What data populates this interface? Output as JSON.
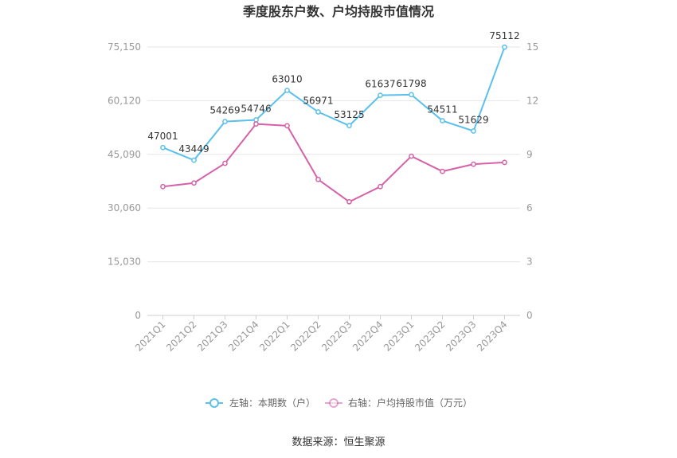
{
  "chart_data": {
    "type": "line",
    "title": "季度股东户数、户均持股市值情况",
    "categories": [
      "2021Q1",
      "2021Q2",
      "2021Q3",
      "2021Q4",
      "2022Q1",
      "2022Q2",
      "2022Q3",
      "2022Q4",
      "2023Q1",
      "2023Q2",
      "2023Q3",
      "2023Q4"
    ],
    "left_axis": {
      "ticks": [
        "0",
        "15,030",
        "30,060",
        "45,090",
        "60,120",
        "75,150"
      ],
      "ylim": [
        0,
        75150
      ]
    },
    "right_axis": {
      "ticks": [
        "0",
        "3",
        "6",
        "9",
        "12",
        "15"
      ],
      "ylim": [
        0,
        15
      ]
    },
    "series": [
      {
        "name": "左轴：本期数（户）",
        "axis": "left",
        "color": "#5bc0eb",
        "values": [
          47001,
          43449,
          54269,
          54746,
          63010,
          56971,
          53125,
          61637,
          61798,
          54511,
          51629,
          75112
        ],
        "labels": [
          "47001",
          "43449",
          "54269",
          "54746",
          "63010",
          "56971",
          "53125",
          "61637",
          "61798",
          "54511",
          "51629",
          "75112"
        ]
      },
      {
        "name": "右轴：户均持股市值（万元）",
        "axis": "right",
        "color": "#d562a8",
        "values": [
          7.2,
          7.4,
          8.5,
          10.7,
          10.6,
          7.6,
          6.35,
          7.2,
          8.9,
          8.05,
          8.45,
          8.55
        ]
      }
    ],
    "grid": true,
    "legend_position": "bottom"
  },
  "source": "数据来源：恒生聚源"
}
